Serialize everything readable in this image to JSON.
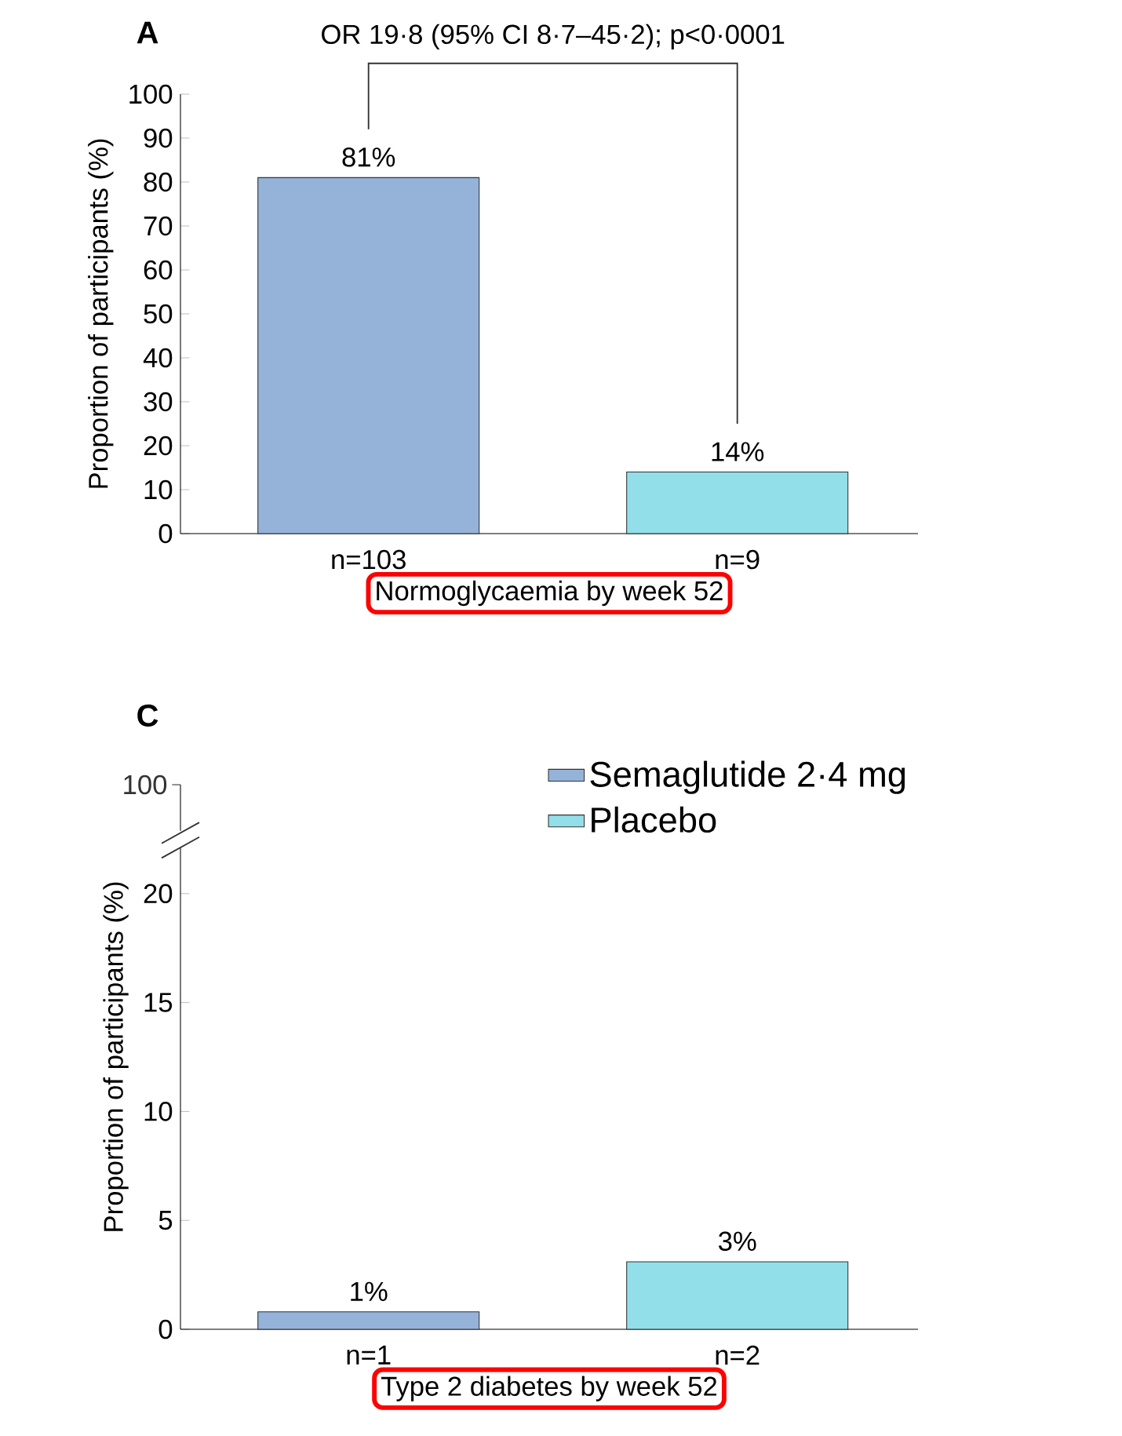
{
  "chart_data": [
    {
      "type": "bar",
      "title": "A",
      "ylabel": "Proportion of participants (%)",
      "xlabel": "Normoglycaemia by week 52",
      "categories": [
        "n=103",
        "n=9"
      ],
      "values": [
        81,
        14
      ],
      "colors": [
        "#95b3d9",
        "#93dfe9"
      ],
      "value_labels": [
        "81%",
        "14%"
      ],
      "ylim": [
        0,
        100
      ],
      "yticks": [
        0,
        10,
        20,
        30,
        40,
        50,
        60,
        70,
        80,
        90,
        100
      ],
      "annotations": [
        "OR 19·8 (95% CI 8·7–45·2); p<0·0001"
      ],
      "legend": false
    },
    {
      "type": "bar",
      "title": "C",
      "ylabel": "Proportion of participants (%)",
      "xlabel": "Type 2 diabetes by week 52",
      "categories": [
        "n=1",
        "n=2"
      ],
      "series": [
        {
          "name": "Semaglutide 2·4 mg",
          "color": "#95b3d9",
          "values": [
            0.8,
            null
          ],
          "value_labels": [
            "1%",
            null
          ]
        },
        {
          "name": "Placebo",
          "color": "#93dfe9",
          "values": [
            null,
            3.1
          ],
          "value_labels": [
            null,
            "3%"
          ]
        }
      ],
      "ylim": [
        0,
        25
      ],
      "yticks": [
        0,
        5,
        10,
        15,
        20
      ],
      "annotations": [
        "100"
      ],
      "legend": "top right"
    }
  ]
}
